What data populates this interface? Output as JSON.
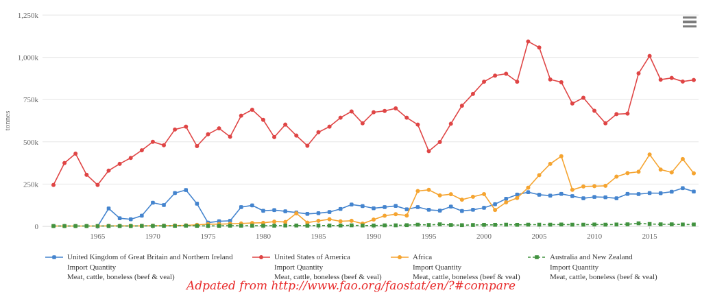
{
  "chart_data": {
    "type": "line",
    "title": "",
    "ylabel": "tonnes",
    "unit": "thousand tonnes",
    "grid": true,
    "legend_position": "bottom",
    "ylim": [
      0,
      1250
    ],
    "y_ticks": [
      0,
      250,
      500,
      750,
      1000,
      1250
    ],
    "y_tick_labels": [
      "0",
      "250k",
      "500k",
      "750k",
      "1,000k",
      "1,250k"
    ],
    "x_tick_years": [
      1965,
      1970,
      1975,
      1980,
      1985,
      1990,
      1995,
      2000,
      2005,
      2010,
      2015
    ],
    "x": [
      1961,
      1962,
      1963,
      1964,
      1965,
      1966,
      1967,
      1968,
      1969,
      1970,
      1971,
      1972,
      1973,
      1974,
      1975,
      1976,
      1977,
      1978,
      1979,
      1980,
      1981,
      1982,
      1983,
      1984,
      1985,
      1986,
      1987,
      1988,
      1989,
      1990,
      1991,
      1992,
      1993,
      1994,
      1995,
      1996,
      1997,
      1998,
      1999,
      2000,
      2001,
      2002,
      2003,
      2004,
      2005,
      2006,
      2007,
      2008,
      2009,
      2010,
      2011,
      2012,
      2013,
      2014,
      2015,
      2016,
      2017,
      2018,
      2019
    ],
    "series": [
      {
        "name": "United Kingdom of Great Britain and Northern Ireland",
        "quantity_label": "Import Quantity",
        "item_label": "Meat, cattle, boneless (beef & veal)",
        "color": "#4484ce",
        "marker": "rounded-square",
        "dash": null,
        "values": [
          null,
          null,
          null,
          null,
          0,
          106,
          48,
          42,
          63,
          140,
          126,
          197,
          215,
          134,
          22,
          30,
          33,
          114,
          124,
          92,
          96,
          89,
          82,
          74,
          78,
          85,
          103,
          129,
          120,
          107,
          114,
          121,
          101,
          114,
          98,
          93,
          117,
          91,
          98,
          110,
          131,
          163,
          188,
          202,
          187,
          182,
          192,
          179,
          166,
          174,
          172,
          166,
          192,
          191,
          197,
          196,
          205,
          226,
          206
        ]
      },
      {
        "name": "United States of America",
        "quantity_label": "Import Quantity",
        "item_label": "Meat, cattle, boneless (beef & veal)",
        "color": "#df4545",
        "marker": "circle",
        "dash": null,
        "values": [
          245,
          375,
          430,
          305,
          245,
          330,
          370,
          405,
          450,
          500,
          480,
          573,
          590,
          475,
          545,
          580,
          530,
          655,
          690,
          630,
          528,
          602,
          537,
          477,
          557,
          590,
          643,
          680,
          610,
          675,
          683,
          698,
          643,
          602,
          445,
          499,
          607,
          714,
          784,
          856,
          892,
          903,
          856,
          1094,
          1058,
          869,
          853,
          727,
          761,
          684,
          610,
          664,
          667,
          905,
          1008,
          868,
          878,
          857,
          866
        ]
      },
      {
        "name": "Africa",
        "quantity_label": "Import Quantity",
        "item_label": "Meat, cattle, boneless (beef & veal)",
        "color": "#f5a430",
        "marker": "circle",
        "dash": null,
        "values": [
          2,
          2,
          2,
          2,
          2,
          3,
          3,
          3,
          3,
          4,
          4,
          5,
          6,
          9,
          13,
          13,
          15,
          17,
          20,
          21,
          28,
          26,
          77,
          22,
          33,
          42,
          30,
          33,
          16,
          40,
          63,
          72,
          64,
          209,
          216,
          183,
          190,
          158,
          175,
          191,
          97,
          142,
          168,
          229,
          303,
          370,
          415,
          216,
          236,
          238,
          240,
          294,
          315,
          323,
          425,
          336,
          319,
          398,
          314
        ]
      },
      {
        "name": "Australia and New Zealand",
        "quantity_label": "Import Quantity",
        "item_label": "Meat, cattle, boneless (beef & veal)",
        "color": "#41923f",
        "marker": "square",
        "dash": "4,3",
        "values": [
          2,
          2,
          2,
          2,
          2,
          2,
          2,
          2,
          3,
          3,
          3,
          3,
          4,
          3,
          3,
          3,
          4,
          4,
          4,
          4,
          4,
          5,
          5,
          4,
          5,
          5,
          5,
          6,
          5,
          5,
          6,
          6,
          7,
          10,
          8,
          12,
          8,
          7,
          8,
          9,
          9,
          10,
          9,
          10,
          10,
          10,
          11,
          10,
          10,
          11,
          10,
          11,
          12,
          18,
          14,
          12,
          12,
          11,
          11
        ]
      }
    ]
  },
  "caption": {
    "text": "Adpated from http://www.fao.org/faostat/en/?#compare",
    "color": "#e82c2c"
  },
  "menu": {
    "icon": "hamburger-menu-icon"
  },
  "style_colors": {
    "gridline": "#e6e6e6",
    "axis_line": "#d4d4d4",
    "tick_label": "#666666",
    "legend_text": "#333333"
  }
}
